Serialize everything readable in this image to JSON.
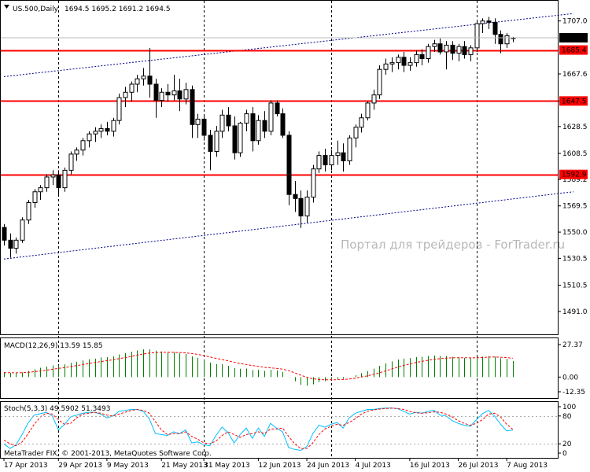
{
  "header": {
    "symbol": "US.500,Daily",
    "ohlc": "1694.5 1695.2 1691.2 1694.5"
  },
  "watermark": "Портал для трейдеров - ForTrader.ru",
  "copyright": "MetaTrader FIX, © 2001-2013, MetaQuotes Software Corp.",
  "colors": {
    "background": "#ffffff",
    "candle": "#000000",
    "level": "#ff0000",
    "level_label_bg": "#ff0000",
    "level_label_text": "#ffffff",
    "price_label_bg": "#000000",
    "channel": "#00008b",
    "macd_hist": "#008000",
    "signal": "#ff0000",
    "stoch_main": "#00bfff",
    "stoch_signal": "#ff0000"
  },
  "chart_data": [
    {
      "type": "candlestick",
      "name": "price",
      "y_range": [
        1474,
        1722
      ],
      "y_ticks": [
        {
          "v": 1707.0,
          "label": "1707.0"
        },
        {
          "v": 1667.6,
          "label": "1667.6"
        },
        {
          "v": 1647.5,
          "label": "1647.5"
        },
        {
          "v": 1628.5,
          "label": "1628.5"
        },
        {
          "v": 1608.5,
          "label": "1608.5"
        },
        {
          "v": 1589.2,
          "label": "1589.2"
        },
        {
          "v": 1569.5,
          "label": "1569.5"
        },
        {
          "v": 1550.0,
          "label": "1550.0"
        },
        {
          "v": 1530.5,
          "label": "1530.5"
        },
        {
          "v": 1510.5,
          "label": "1510.5"
        },
        {
          "v": 1491.0,
          "label": "1491.0"
        }
      ],
      "levels": [
        {
          "v": 1685.4,
          "label": "1685.4"
        },
        {
          "v": 1647.5,
          "label": "1647.5"
        },
        {
          "v": 1592.9,
          "label": "1592.9"
        }
      ],
      "current_price": {
        "v": 1694.5,
        "label": "1694.5"
      },
      "channel_lines": [
        {
          "points": [
            [
              0,
              1665.6
            ],
            [
              94,
              1712.5
            ]
          ]
        },
        {
          "points": [
            [
              0,
              1530.0
            ],
            [
              94,
              1580.0
            ]
          ]
        }
      ],
      "x_labels": [
        {
          "i": 0,
          "label": "17 Apr 2013"
        },
        {
          "i": 9,
          "label": "29 Apr 2013"
        },
        {
          "i": 17,
          "label": "9 May 2013"
        },
        {
          "i": 26,
          "label": "21 May 2013"
        },
        {
          "i": 33,
          "label": "31 May 2013"
        },
        {
          "i": 42,
          "label": "12 Jun 2013"
        },
        {
          "i": 50,
          "label": "24 Jun 2013"
        },
        {
          "i": 58,
          "label": "4 Jul 2013"
        },
        {
          "i": 67,
          "label": "16 Jul 2013"
        },
        {
          "i": 75,
          "label": "26 Jul 2013"
        },
        {
          "i": 83,
          "label": "7 Aug 2013"
        }
      ],
      "separators": [
        9,
        33,
        54,
        78
      ],
      "candles": [
        [
          1553.5,
          1556.0,
          1540.0,
          1544.0
        ],
        [
          1544.0,
          1549.0,
          1531.0,
          1538.0
        ],
        [
          1538.0,
          1546.0,
          1534.0,
          1544.0
        ],
        [
          1544.0,
          1561.0,
          1542.0,
          1559.0
        ],
        [
          1559.0,
          1574.0,
          1556.0,
          1572.0
        ],
        [
          1572.0,
          1582.0,
          1568.0,
          1580.0
        ],
        [
          1580.0,
          1585.0,
          1574.0,
          1583.0
        ],
        [
          1583.0,
          1593.0,
          1580.0,
          1591.0
        ],
        [
          1591.0,
          1596.0,
          1585.0,
          1592.5
        ],
        [
          1592.5,
          1596.0,
          1577.0,
          1583.0
        ],
        [
          1583.0,
          1598.0,
          1580.0,
          1596.0
        ],
        [
          1596.0,
          1610.0,
          1593.0,
          1608.0
        ],
        [
          1608.0,
          1613.0,
          1603.0,
          1611.0
        ],
        [
          1611.0,
          1620.0,
          1607.0,
          1618.0
        ],
        [
          1618.0,
          1625.0,
          1613.0,
          1623.0
        ],
        [
          1623.0,
          1628.0,
          1617.0,
          1625.0
        ],
        [
          1625.0,
          1630.0,
          1620.0,
          1627.0
        ],
        [
          1627.0,
          1632.0,
          1622.0,
          1625.0
        ],
        [
          1625.0,
          1635.0,
          1621.0,
          1633.0
        ],
        [
          1633.0,
          1653.0,
          1630.0,
          1650.0
        ],
        [
          1650.0,
          1658.0,
          1643.0,
          1654.0
        ],
        [
          1654.0,
          1662.0,
          1647.0,
          1660.0
        ],
        [
          1660.0,
          1667.0,
          1654.0,
          1664.0
        ],
        [
          1664.0,
          1672.0,
          1659.0,
          1666.0
        ],
        [
          1666.0,
          1687.0,
          1650.0,
          1660.0
        ],
        [
          1660.0,
          1664.0,
          1635.0,
          1648.0
        ],
        [
          1648.0,
          1657.0,
          1643.0,
          1654.0
        ],
        [
          1654.0,
          1660.0,
          1647.0,
          1652.0
        ],
        [
          1652.0,
          1667.0,
          1648.0,
          1655.0
        ],
        [
          1655.0,
          1664.0,
          1640.0,
          1649.0
        ],
        [
          1649.0,
          1661.0,
          1645.0,
          1656.0
        ],
        [
          1656.0,
          1659.0,
          1620.0,
          1630.0
        ],
        [
          1630.0,
          1638.0,
          1620.0,
          1634.0
        ],
        [
          1634.0,
          1637.0,
          1618.0,
          1622.0
        ],
        [
          1622.0,
          1626.0,
          1596.0,
          1610.0
        ],
        [
          1610.0,
          1629.0,
          1606.0,
          1625.0
        ],
        [
          1625.0,
          1641.0,
          1620.0,
          1637.0
        ],
        [
          1637.0,
          1643.0,
          1625.0,
          1629.0
        ],
        [
          1629.0,
          1636.0,
          1604.0,
          1609.0
        ],
        [
          1609.0,
          1632.0,
          1606.0,
          1631.0
        ],
        [
          1631.0,
          1641.0,
          1625.0,
          1638.0
        ],
        [
          1638.0,
          1643.0,
          1610.0,
          1618.0
        ],
        [
          1618.0,
          1637.0,
          1615.0,
          1633.0
        ],
        [
          1633.0,
          1640.0,
          1620.0,
          1625.0
        ],
        [
          1625.0,
          1648.0,
          1622.0,
          1646.0
        ],
        [
          1646.0,
          1648.0,
          1636.0,
          1638.0
        ],
        [
          1638.0,
          1642.0,
          1620.0,
          1622.0
        ],
        [
          1622.0,
          1625.0,
          1570.0,
          1578.0
        ],
        [
          1578.0,
          1588.0,
          1565.0,
          1575.0
        ],
        [
          1575.0,
          1581.0,
          1553.0,
          1562.0
        ],
        [
          1562.0,
          1581.0,
          1557.0,
          1576.0
        ],
        [
          1576.0,
          1600.0,
          1572.0,
          1597.0
        ],
        [
          1597.0,
          1610.0,
          1594.0,
          1607.0
        ],
        [
          1607.0,
          1612.0,
          1595.0,
          1600.0
        ],
        [
          1600.0,
          1611.0,
          1596.0,
          1607.0
        ],
        [
          1607.0,
          1618.0,
          1600.0,
          1609.0
        ],
        [
          1609.0,
          1616.0,
          1595.0,
          1603.0
        ],
        [
          1603.0,
          1622.0,
          1600.0,
          1620.0
        ],
        [
          1620.0,
          1630.0,
          1613.0,
          1628.0
        ],
        [
          1628.0,
          1638.0,
          1624.0,
          1635.0
        ],
        [
          1635.0,
          1647.0,
          1633.0,
          1646.0
        ],
        [
          1646.0,
          1656.0,
          1641.0,
          1652.0
        ],
        [
          1652.0,
          1674.0,
          1649.0,
          1671.0
        ],
        [
          1671.0,
          1679.0,
          1667.0,
          1675.0
        ],
        [
          1675.0,
          1680.0,
          1669.0,
          1676.0
        ],
        [
          1676.0,
          1682.0,
          1671.0,
          1680.0
        ],
        [
          1680.0,
          1684.0,
          1669.0,
          1674.0
        ],
        [
          1674.0,
          1680.0,
          1670.0,
          1676.0
        ],
        [
          1676.0,
          1685.0,
          1673.0,
          1682.0
        ],
        [
          1682.0,
          1686.0,
          1674.0,
          1679.0
        ],
        [
          1679.0,
          1690.0,
          1676.0,
          1688.0
        ],
        [
          1688.0,
          1693.0,
          1684.0,
          1690.0
        ],
        [
          1690.0,
          1694.0,
          1682.0,
          1684.0
        ],
        [
          1684.0,
          1692.0,
          1671.0,
          1689.0
        ],
        [
          1689.0,
          1692.0,
          1678.0,
          1683.0
        ],
        [
          1683.0,
          1690.0,
          1677.0,
          1688.0
        ],
        [
          1688.0,
          1692.0,
          1679.0,
          1682.0
        ],
        [
          1682.0,
          1689.0,
          1677.0,
          1687.0
        ],
        [
          1687.0,
          1708.0,
          1684.0,
          1705.0
        ],
        [
          1705.0,
          1709.0,
          1698.0,
          1707.0
        ],
        [
          1707.0,
          1710.0,
          1701.0,
          1706.0
        ],
        [
          1706.0,
          1709.0,
          1690.0,
          1697.0
        ],
        [
          1697.0,
          1700.0,
          1683.0,
          1690.0
        ],
        [
          1690.0,
          1698.0,
          1687.0,
          1696.0
        ],
        [
          1694.5,
          1695.2,
          1691.2,
          1694.5
        ]
      ]
    },
    {
      "type": "bar",
      "name": "MACD(12,26,9) 13.59 15.85",
      "y_range": [
        -12.35,
        27.37
      ],
      "y_ticks": [
        {
          "v": 27.37,
          "label": "27.37"
        },
        {
          "v": 0.0,
          "label": "0.00"
        },
        {
          "v": -12.35,
          "label": "-12.35"
        }
      ],
      "histogram": [
        4.2,
        3.5,
        3.2,
        3.9,
        5.2,
        6.6,
        7.8,
        8.9,
        9.8,
        10.0,
        10.7,
        12.0,
        13.0,
        14.0,
        15.0,
        15.5,
        16.5,
        16.8,
        17.5,
        19.0,
        20.2,
        21.3,
        22.5,
        23.3,
        23.3,
        22.2,
        21.6,
        21.0,
        20.8,
        19.9,
        19.5,
        17.4,
        16.3,
        14.3,
        12.2,
        11.0,
        10.8,
        9.5,
        7.5,
        7.0,
        7.2,
        5.9,
        6.2,
        5.2,
        6.1,
        5.6,
        4.3,
        -0.2,
        -3.5,
        -6.5,
        -7.2,
        -6.1,
        -4.2,
        -3.4,
        -2.1,
        -1.6,
        -1.4,
        0.0,
        1.6,
        3.3,
        5.1,
        7.1,
        9.5,
        11.6,
        13.2,
        14.8,
        15.5,
        16.0,
        16.9,
        17.1,
        17.8,
        18.2,
        17.8,
        17.8,
        17.0,
        16.8,
        16.0,
        16.0,
        16.6,
        17.2,
        17.8,
        17.3,
        15.9,
        15.4,
        13.59
      ],
      "signal": [
        3.7,
        3.7,
        3.6,
        3.7,
        4.0,
        4.5,
        5.1,
        5.8,
        6.6,
        7.3,
        8.0,
        8.8,
        9.7,
        10.5,
        11.4,
        12.2,
        13.1,
        13.8,
        14.5,
        15.5,
        16.4,
        17.4,
        18.4,
        19.4,
        20.2,
        20.6,
        20.8,
        20.8,
        20.8,
        20.6,
        20.4,
        19.8,
        19.1,
        18.2,
        17.0,
        15.8,
        14.8,
        13.7,
        12.5,
        11.4,
        10.6,
        9.7,
        9.0,
        8.2,
        7.8,
        7.3,
        6.7,
        5.4,
        3.6,
        1.6,
        -0.2,
        -1.4,
        -2.0,
        -2.3,
        -2.3,
        -2.2,
        -2.0,
        -1.6,
        -0.9,
        0.0,
        1.0,
        2.2,
        3.6,
        5.2,
        6.8,
        8.4,
        9.8,
        11.0,
        12.2,
        13.2,
        14.1,
        14.9,
        15.5,
        16.0,
        16.2,
        16.3,
        16.3,
        16.2,
        16.3,
        16.5,
        16.8,
        16.9,
        16.7,
        16.4,
        15.85
      ]
    },
    {
      "type": "line",
      "name": "Stoch(5,3,3) 49.5902 51.3493",
      "y_range": [
        0,
        100
      ],
      "y_ticks": [
        {
          "v": 100,
          "label": "100"
        },
        {
          "v": 80,
          "label": "80"
        },
        {
          "v": 20,
          "label": "20"
        },
        {
          "v": 0,
          "label": "0"
        }
      ],
      "series": [
        {
          "name": "main",
          "values": [
            20,
            10,
            18,
            40,
            65,
            82,
            85,
            88,
            80,
            50,
            62,
            78,
            82,
            86,
            88,
            88,
            84,
            76,
            80,
            90,
            92,
            94,
            94,
            90,
            74,
            42,
            40,
            38,
            46,
            42,
            50,
            22,
            24,
            18,
            16,
            38,
            56,
            44,
            22,
            40,
            54,
            32,
            54,
            36,
            64,
            54,
            46,
            12,
            8,
            6,
            14,
            42,
            60,
            56,
            62,
            66,
            54,
            76,
            86,
            90,
            94,
            94,
            96,
            97,
            97,
            96,
            90,
            84,
            88,
            86,
            90,
            92,
            82,
            80,
            70,
            64,
            60,
            58,
            72,
            85,
            92,
            80,
            62,
            48,
            49.59
          ]
        },
        {
          "name": "signal",
          "values": [
            28,
            20,
            16,
            24,
            42,
            62,
            78,
            86,
            84,
            72,
            62,
            64,
            76,
            84,
            86,
            88,
            86,
            82,
            80,
            84,
            88,
            92,
            94,
            92,
            86,
            68,
            50,
            40,
            42,
            42,
            46,
            36,
            30,
            22,
            20,
            26,
            38,
            46,
            40,
            34,
            40,
            42,
            46,
            42,
            52,
            52,
            54,
            36,
            20,
            10,
            10,
            22,
            40,
            52,
            58,
            62,
            60,
            66,
            74,
            84,
            90,
            93,
            95,
            96,
            97,
            96,
            94,
            90,
            87,
            86,
            87,
            89,
            88,
            84,
            78,
            70,
            64,
            60,
            64,
            72,
            84,
            86,
            78,
            62,
            51.35
          ]
        }
      ]
    }
  ]
}
